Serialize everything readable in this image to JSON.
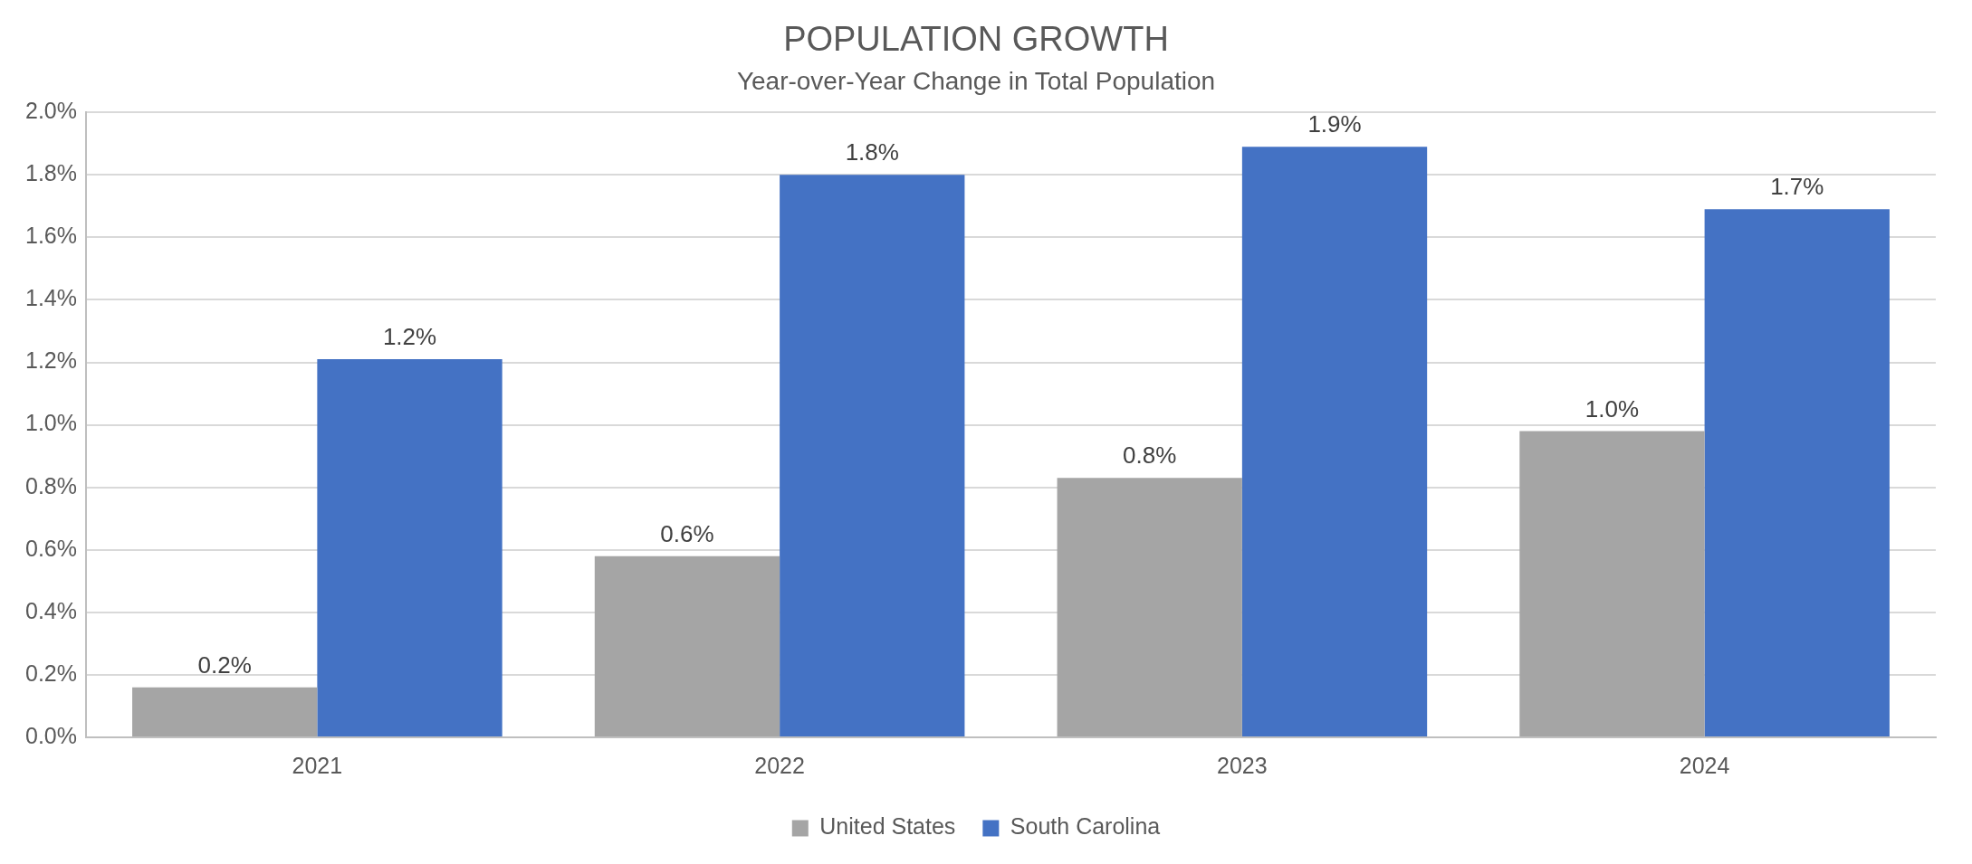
{
  "chart_data": {
    "type": "bar",
    "title": "POPULATION GROWTH",
    "subtitle": "Year-over-Year Change in Total Population",
    "categories": [
      "2021",
      "2022",
      "2023",
      "2024"
    ],
    "series": [
      {
        "name": "United States",
        "color": "#a5a5a5",
        "values": [
          0.16,
          0.58,
          0.83,
          0.98
        ],
        "value_labels": [
          "0.2%",
          "0.6%",
          "0.8%",
          "1.0%"
        ]
      },
      {
        "name": "South Carolina",
        "color": "#4472c4",
        "values": [
          1.21,
          1.8,
          1.89,
          1.69
        ],
        "value_labels": [
          "1.2%",
          "1.8%",
          "1.9%",
          "1.7%"
        ]
      }
    ],
    "ylim": [
      0,
      2
    ],
    "yticks": [
      {
        "value": 0,
        "label": "0.0%"
      },
      {
        "value": 0.2,
        "label": "0.2%"
      },
      {
        "value": 0.4,
        "label": "0.4%"
      },
      {
        "value": 0.6,
        "label": "0.6%"
      },
      {
        "value": 0.8,
        "label": "0.8%"
      },
      {
        "value": 1,
        "label": "1.0%"
      },
      {
        "value": 1.2,
        "label": "1.2%"
      },
      {
        "value": 1.4,
        "label": "1.4%"
      },
      {
        "value": 1.6,
        "label": "1.6%"
      },
      {
        "value": 1.8,
        "label": "1.8%"
      },
      {
        "value": 2,
        "label": "2.0%"
      }
    ],
    "grid": "y",
    "legend": "bottom"
  }
}
